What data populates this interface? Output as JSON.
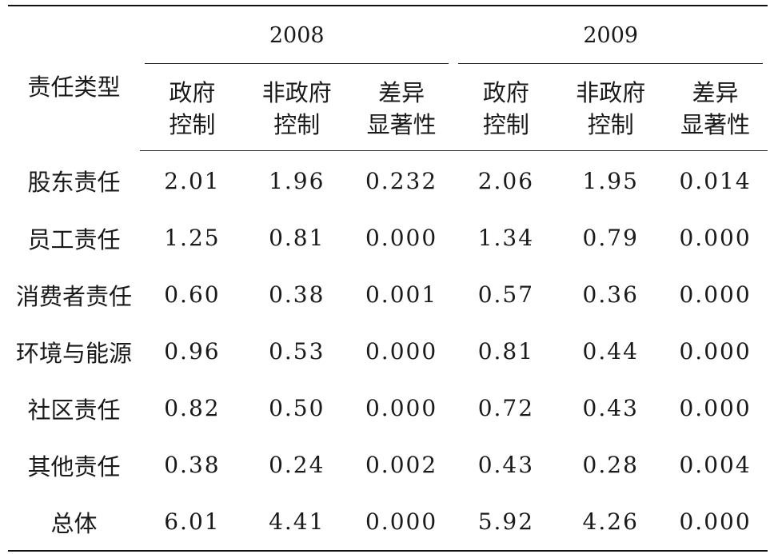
{
  "table": {
    "type_header": "责任类型",
    "years": [
      "2008",
      "2009"
    ],
    "sub_headers": [
      [
        "政府",
        "控制"
      ],
      [
        "非政府",
        "控制"
      ],
      [
        "差异",
        "显著性"
      ],
      [
        "政府",
        "控制"
      ],
      [
        "非政府",
        "控制"
      ],
      [
        "差异",
        "显著性"
      ]
    ],
    "rows": [
      {
        "label": "股东责任",
        "values": [
          "2.01",
          "1.96",
          "0.232",
          "2.06",
          "1.95",
          "0.014"
        ]
      },
      {
        "label": "员工责任",
        "values": [
          "1.25",
          "0.81",
          "0.000",
          "1.34",
          "0.79",
          "0.000"
        ]
      },
      {
        "label": "消费者责任",
        "values": [
          "0.60",
          "0.38",
          "0.001",
          "0.57",
          "0.36",
          "0.000"
        ]
      },
      {
        "label": "环境与能源",
        "values": [
          "0.96",
          "0.53",
          "0.000",
          "0.81",
          "0.44",
          "0.000"
        ]
      },
      {
        "label": "社区责任",
        "values": [
          "0.82",
          "0.50",
          "0.000",
          "0.72",
          "0.43",
          "0.000"
        ]
      },
      {
        "label": "其他责任",
        "values": [
          "0.38",
          "0.24",
          "0.002",
          "0.43",
          "0.28",
          "0.004"
        ]
      },
      {
        "label": "总体",
        "values": [
          "6.01",
          "4.41",
          "0.000",
          "5.92",
          "4.26",
          "0.000"
        ]
      }
    ]
  }
}
